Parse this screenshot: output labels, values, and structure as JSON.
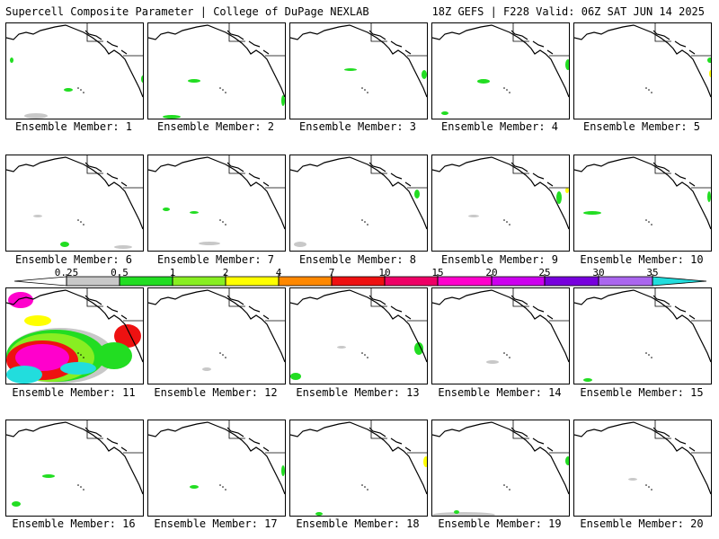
{
  "header": {
    "title": "Supercell Composite Parameter | College of DuPage NEXLAB",
    "run_info": "18Z GEFS | F228 Valid: 06Z SAT JUN 14 2025"
  },
  "panels": [
    {
      "label": "Ensemble Member: 1"
    },
    {
      "label": "Ensemble Member: 2"
    },
    {
      "label": "Ensemble Member: 3"
    },
    {
      "label": "Ensemble Member: 4"
    },
    {
      "label": "Ensemble Member: 5"
    },
    {
      "label": "Ensemble Member: 6"
    },
    {
      "label": "Ensemble Member: 7"
    },
    {
      "label": "Ensemble Member: 8"
    },
    {
      "label": "Ensemble Member: 9"
    },
    {
      "label": "Ensemble Member: 10"
    },
    {
      "label": "Ensemble Member: 11"
    },
    {
      "label": "Ensemble Member: 12"
    },
    {
      "label": "Ensemble Member: 13"
    },
    {
      "label": "Ensemble Member: 14"
    },
    {
      "label": "Ensemble Member: 15"
    },
    {
      "label": "Ensemble Member: 16"
    },
    {
      "label": "Ensemble Member: 17"
    },
    {
      "label": "Ensemble Member: 18"
    },
    {
      "label": "Ensemble Member: 19"
    },
    {
      "label": "Ensemble Member: 20"
    }
  ],
  "colorbar": {
    "ticks": [
      "0.25",
      "0.5",
      "1",
      "2",
      "4",
      "7",
      "10",
      "15",
      "20",
      "25",
      "30",
      "35"
    ],
    "colors": [
      "#ffffff",
      "#c8c8c8",
      "#22dd22",
      "#88ee22",
      "#ffff00",
      "#ff8800",
      "#ee1111",
      "#ee0066",
      "#ff00cc",
      "#cc00ee",
      "#7700dd",
      "#aa66ee",
      "#22dddd"
    ]
  },
  "colors": {
    "low": "#c8c8c8",
    "green": "#22dd22",
    "lime": "#88ee22",
    "yellow": "#ffff00",
    "orange": "#ff8800",
    "red": "#ee1111",
    "magenta": "#ff00cc",
    "cyan": "#22dddd"
  }
}
